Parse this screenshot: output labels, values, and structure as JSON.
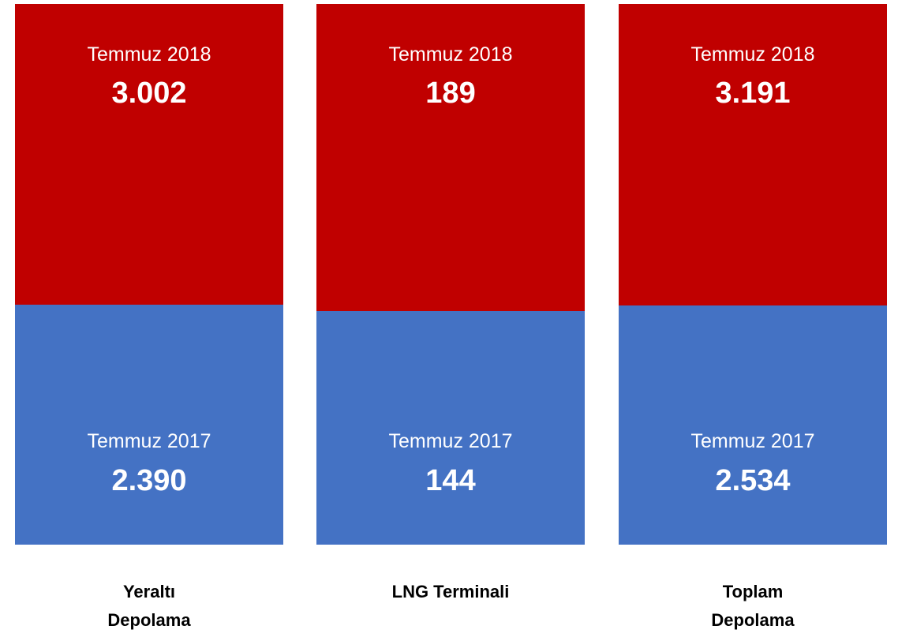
{
  "chart_data": {
    "type": "bar",
    "stacking": "percent",
    "categories": [
      "Yeraltı Depolama",
      "LNG Terminali",
      "Toplam Depolama"
    ],
    "series": [
      {
        "name": "Temmuz 2017",
        "color": "#4472c4",
        "values": [
          2390,
          144,
          2534
        ],
        "value_labels": [
          "2.390",
          "144",
          "2.534"
        ]
      },
      {
        "name": "Temmuz 2018",
        "color": "#c00000",
        "values": [
          3002,
          189,
          3191
        ],
        "value_labels": [
          "3.002",
          "189",
          "3.191"
        ]
      }
    ]
  }
}
